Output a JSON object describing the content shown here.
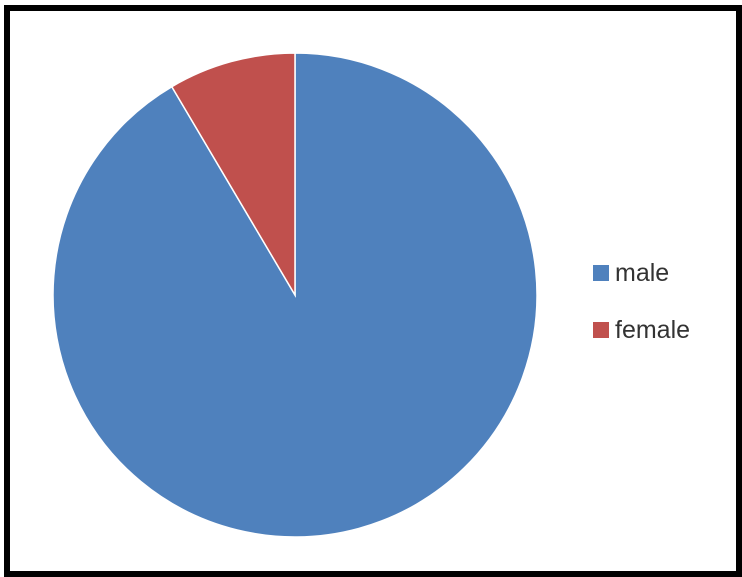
{
  "chart_data": {
    "type": "pie",
    "title": "",
    "categories": [
      "male",
      "female"
    ],
    "values": [
      91.5,
      8.5
    ],
    "colors": [
      "#4F81BD",
      "#C0504D"
    ],
    "start_angle": "12 o'clock",
    "direction": "clockwise",
    "legend": {
      "position": "right",
      "entries": [
        "male",
        "female"
      ]
    }
  }
}
